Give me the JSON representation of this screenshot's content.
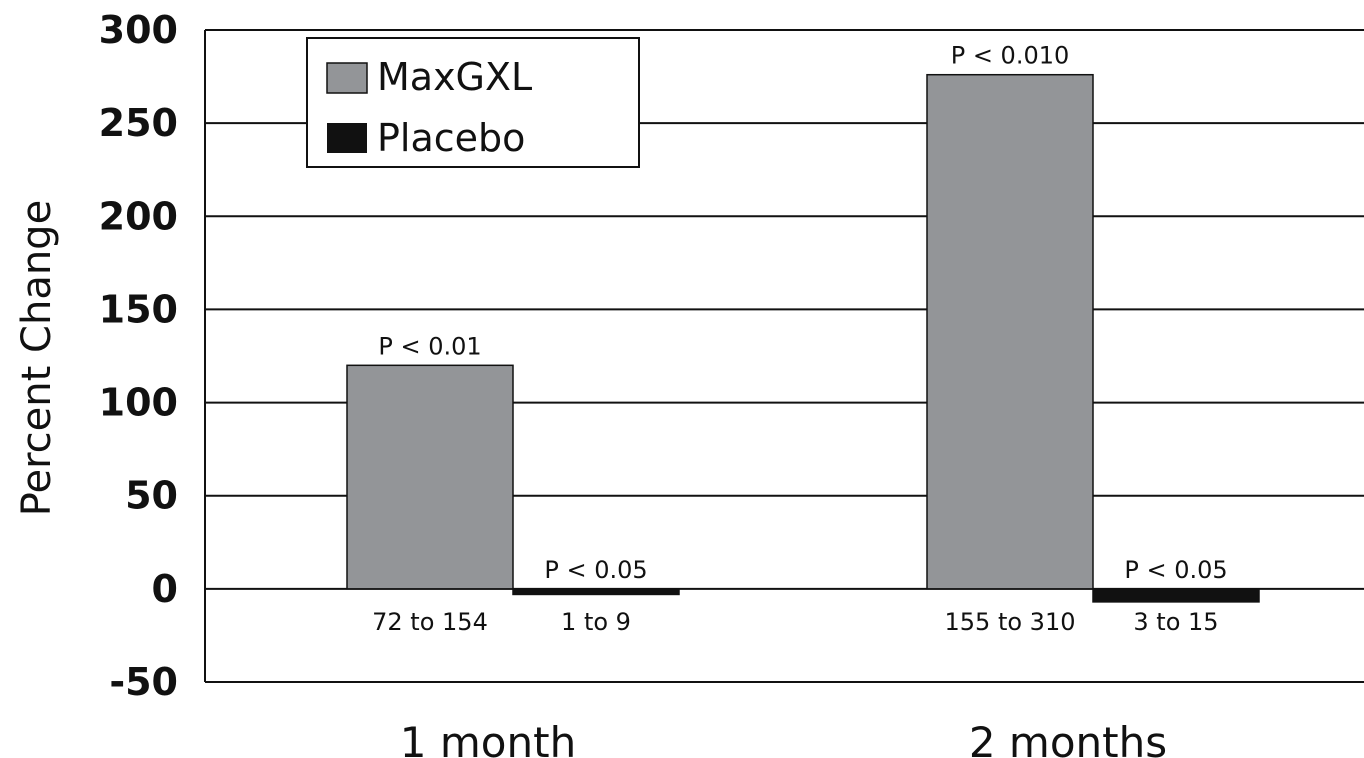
{
  "chart_data": {
    "type": "bar",
    "ylabel": "Percent Change",
    "ylim": [
      -50,
      300
    ],
    "yticks": [
      300,
      250,
      200,
      150,
      100,
      50,
      0,
      -50
    ],
    "grid": true,
    "legend_position": "top-left",
    "categories": [
      "1 month",
      "2 months"
    ],
    "series": [
      {
        "name": "MaxGXL",
        "color": "#939598",
        "values": [
          120,
          276
        ],
        "p_values": [
          "P < 0.01",
          "P < 0.010"
        ],
        "ranges": [
          "72 to 154",
          "155 to 310"
        ]
      },
      {
        "name": "Placebo",
        "color": "#111111",
        "values": [
          -3,
          -7
        ],
        "p_values": [
          "P < 0.05",
          "P < 0.05"
        ],
        "ranges": [
          "1 to 9",
          "3 to 15"
        ]
      }
    ]
  }
}
